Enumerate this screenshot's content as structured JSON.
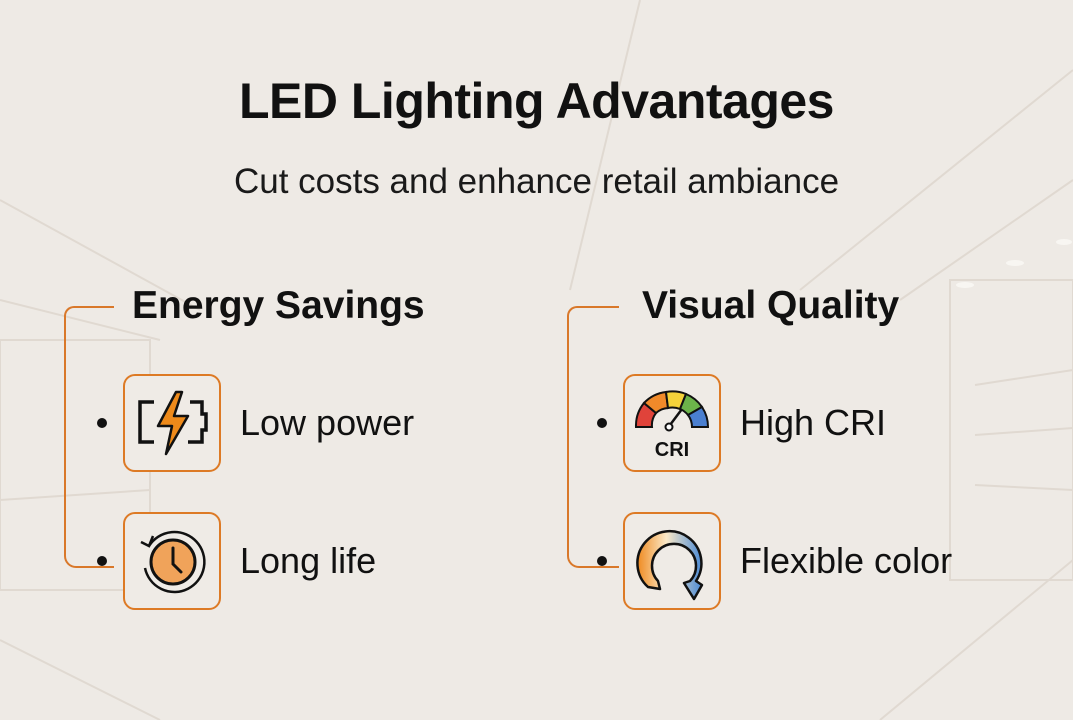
{
  "title": "LED Lighting Advantages",
  "subtitle": "Cut costs and enhance retail ambiance",
  "colors": {
    "accent": "#dd7a25",
    "background": "#eeeae5",
    "text": "#111111"
  },
  "sections": [
    {
      "heading": "Energy Savings",
      "items": [
        {
          "label": "Low power",
          "icon": "battery-lightning-icon"
        },
        {
          "label": "Long life",
          "icon": "clock-cycle-icon"
        }
      ]
    },
    {
      "heading": "Visual Quality",
      "items": [
        {
          "label": "High CRI",
          "icon": "cri-gauge-icon",
          "icon_text": "CRI"
        },
        {
          "label": "Flexible color",
          "icon": "color-cycle-icon"
        }
      ]
    }
  ]
}
